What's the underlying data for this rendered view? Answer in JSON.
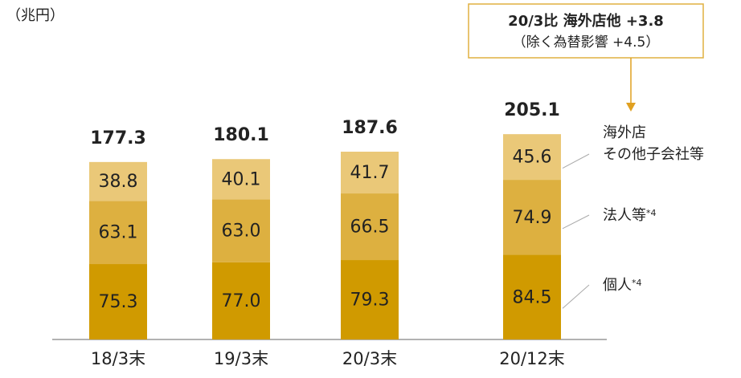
{
  "chart_data": {
    "type": "stacked_bar",
    "y_label": "（兆円）",
    "categories": [
      "18/3末",
      "19/3末",
      "20/3末",
      "20/12末"
    ],
    "series": [
      {
        "name": "個人",
        "note": "*4",
        "color": "#d09a00",
        "label_color": "#ffffff",
        "values": [
          75.3,
          77.0,
          79.3,
          84.5
        ],
        "value_labels": [
          "75.3",
          "77.0",
          "79.3",
          "84.5"
        ]
      },
      {
        "name": "法人等",
        "note": "*4",
        "color": "#ddb040",
        "label_color": "#222222",
        "values": [
          63.1,
          63.0,
          66.5,
          74.9
        ],
        "value_labels": [
          "63.1",
          "63.0",
          "66.5",
          "74.9"
        ]
      },
      {
        "name": "海外店\nその他子会社等",
        "color": "#eac878",
        "label_color": "#222222",
        "values": [
          38.8,
          40.1,
          41.7,
          45.6
        ],
        "value_labels": [
          "38.8",
          "40.1",
          "41.7",
          "45.6"
        ]
      }
    ],
    "totals": [
      177.3,
      180.1,
      187.6,
      205.1
    ],
    "annotation": {
      "line1": "20/3比 海外店他 +3.8",
      "line2": "（除く為替影響 +4.5）"
    },
    "ylim": [
      0,
      250
    ]
  }
}
